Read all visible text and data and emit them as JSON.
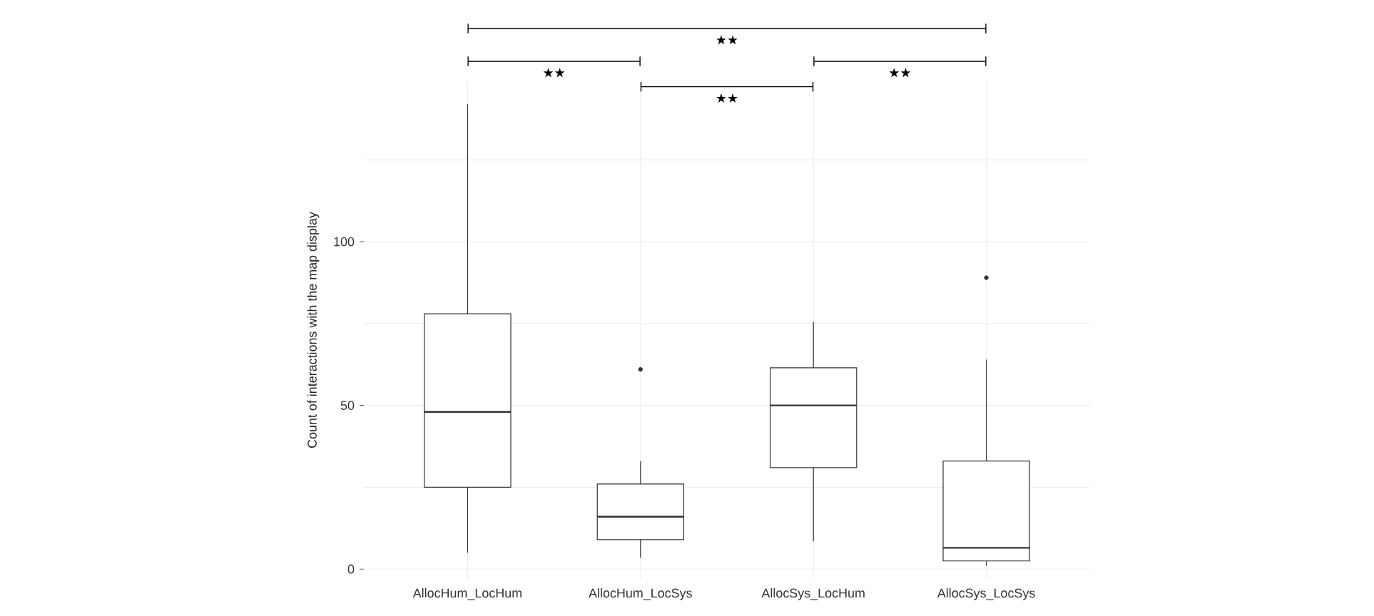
{
  "chart_data": {
    "type": "box",
    "ylabel": "Count of interactions with the map display",
    "categories": [
      "AllocHum_LocHum",
      "AllocHum_LocSys",
      "AllocSys_LocHum",
      "AllocSys_LocSys"
    ],
    "boxes": [
      {
        "low": 5,
        "q1": 25,
        "median": 48,
        "q3": 78,
        "high": 142
      },
      {
        "low": 3.5,
        "q1": 9,
        "median": 16,
        "q3": 26,
        "high": 33,
        "outliers": [
          61
        ]
      },
      {
        "low": 8.5,
        "q1": 31,
        "median": 50,
        "q3": 61.5,
        "high": 75.5
      },
      {
        "low": 1,
        "q1": 2.5,
        "median": 6.5,
        "q3": 33,
        "high": 64,
        "outliers": [
          89
        ]
      }
    ],
    "color": "#333333",
    "ylim": [
      -3,
      149
    ],
    "yticks": [
      0,
      {
        "value": 25,
        "label": null
      },
      50,
      {
        "value": 75,
        "label": null
      },
      100,
      {
        "value": 125,
        "label": null
      }
    ],
    "grid": true,
    "annotations": [
      "★★",
      "★★",
      "★★",
      "★★"
    ]
  }
}
